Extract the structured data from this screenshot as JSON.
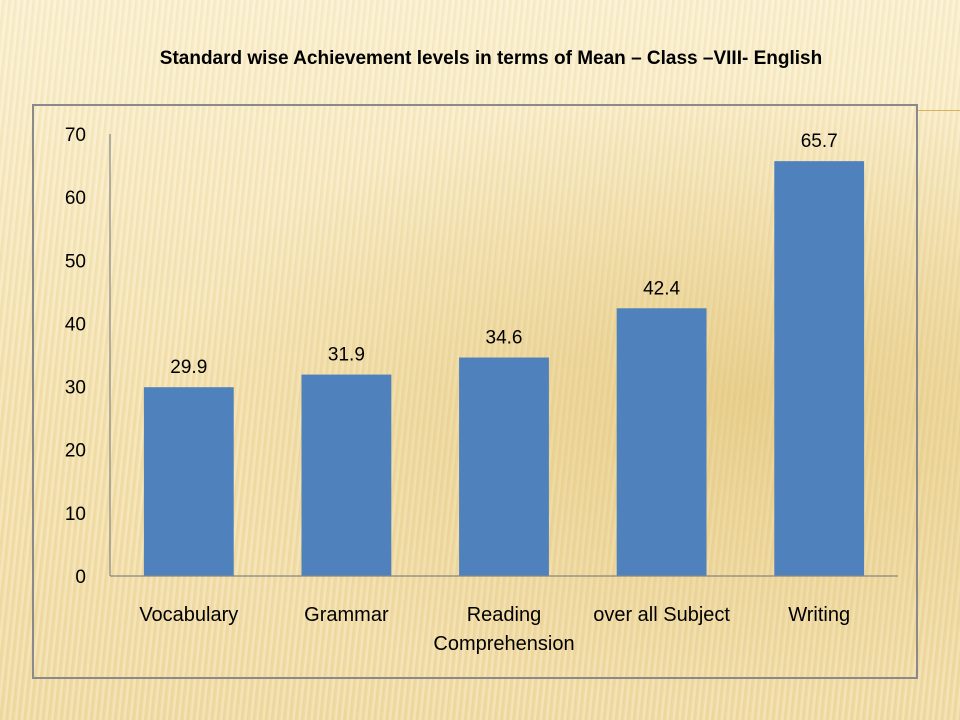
{
  "colors": {
    "bar": "#4f81bd",
    "axis": "#868686"
  },
  "chart_data": {
    "type": "bar",
    "title": "Standard wise Achievement levels in terms of Mean – Class –VIII- English",
    "xlabel": "",
    "ylabel": "",
    "categories": [
      [
        "Vocabulary"
      ],
      [
        "Grammar"
      ],
      [
        "Reading",
        "Comprehension"
      ],
      [
        "over all Subject"
      ],
      [
        "Writing"
      ]
    ],
    "values": [
      29.9,
      31.9,
      34.6,
      42.4,
      65.7
    ],
    "data_labels": [
      "29.9",
      "31.9",
      "34.6",
      "42.4",
      "65.7"
    ],
    "ylim": [
      0,
      70
    ],
    "yticks": [
      0,
      10,
      20,
      30,
      40,
      50,
      60,
      70
    ],
    "grid": false,
    "legend": "none"
  }
}
